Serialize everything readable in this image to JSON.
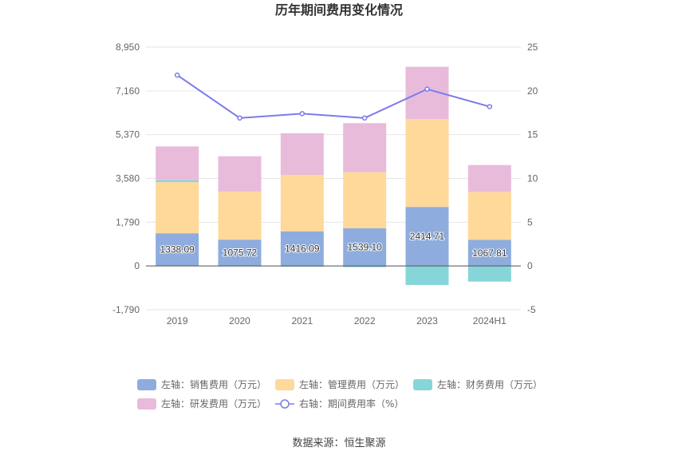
{
  "title": "历年期间费用变化情况",
  "source": "数据来源：恒生聚源",
  "chart_data": {
    "type": "bar",
    "stacked": true,
    "categories": [
      "2019",
      "2020",
      "2021",
      "2022",
      "2023",
      "2024H1"
    ],
    "left_axis": {
      "ticks": [
        "-1,790",
        "0",
        "1,790",
        "3,580",
        "5,370",
        "7,160",
        "8,950"
      ],
      "range": [
        -1790,
        8950
      ]
    },
    "right_axis": {
      "ticks": [
        "-5",
        "0",
        "5",
        "10",
        "15",
        "20",
        "25"
      ],
      "range": [
        -5,
        25
      ]
    },
    "series": [
      {
        "name": "左轴：销售费用（万元）",
        "axis": "left",
        "color": "#8eadde",
        "values": [
          1338.09,
          1075.72,
          1416.09,
          1539.1,
          2414.71,
          1067.81
        ],
        "labels": [
          "1338.09",
          "1075.72",
          "1416.09",
          "1539.10",
          "2414.71",
          "1067.81"
        ]
      },
      {
        "name": "左轴：管理费用（万元）",
        "axis": "left",
        "color": "#ffd99a",
        "values": [
          2090,
          1960,
          2310,
          2300,
          3590,
          1960
        ]
      },
      {
        "name": "左轴：财务费用（万元）",
        "axis": "left",
        "color": "#86d6d9",
        "values": [
          80,
          -20,
          -30,
          -50,
          -780,
          -640
        ]
      },
      {
        "name": "左轴：研发费用（万元）",
        "axis": "left",
        "color": "#e8bbdb",
        "values": [
          1380,
          1450,
          1700,
          2000,
          2140,
          1100
        ]
      },
      {
        "name": "右轴：期间费用率（%）",
        "axis": "right",
        "type": "line",
        "color": "#7b7bea",
        "values": [
          21.8,
          16.9,
          17.4,
          16.9,
          20.2,
          18.2
        ]
      }
    ],
    "legend_position": "bottom",
    "grid": true
  }
}
